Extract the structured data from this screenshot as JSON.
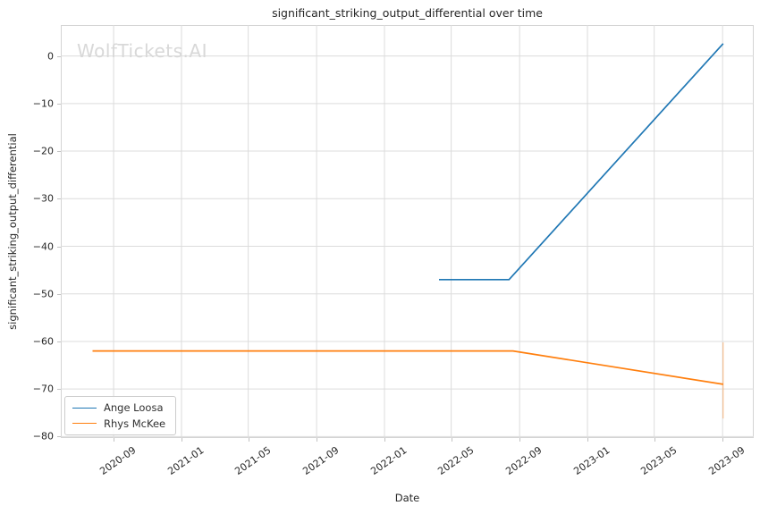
{
  "header": {
    "title": "significant_striking_output_differential over time",
    "watermark": "WolfTickets.AI"
  },
  "axes": {
    "xlabel": "Date",
    "ylabel": "significant_striking_output_differential"
  },
  "legend": {
    "items": [
      {
        "label": "Ange Loosa",
        "color": "#1f77b4"
      },
      {
        "label": "Rhys McKee",
        "color": "#ff7f0e"
      }
    ]
  },
  "colors": {
    "series_blue": "#1f77b4",
    "series_orange": "#ff7f0e",
    "grid": "#dcdcdc",
    "spine": "#d4d4d4",
    "text": "#262626",
    "watermark": "#d8d8d8"
  },
  "chart_data": {
    "type": "line",
    "title": "significant_striking_output_differential over time",
    "xlabel": "Date",
    "ylabel": "significant_striking_output_differential",
    "grid": true,
    "legend_position": "lower left",
    "x_domain": [
      "2020-05-29",
      "2023-10-27"
    ],
    "y_domain": [
      -80.3,
      6.5
    ],
    "x_ticks": [
      "2020-09",
      "2021-01",
      "2021-05",
      "2021-09",
      "2022-01",
      "2022-05",
      "2022-09",
      "2023-01",
      "2023-05",
      "2023-09"
    ],
    "y_ticks": [
      0,
      -10,
      -20,
      -30,
      -40,
      -50,
      -60,
      -70,
      -80
    ],
    "series": [
      {
        "name": "Ange Loosa",
        "color": "#1f77b4",
        "points": [
          [
            "2022-04-09",
            -47
          ],
          [
            "2022-08-13",
            -47
          ],
          [
            "2023-09-02",
            2.6
          ]
        ]
      },
      {
        "name": "Rhys McKee",
        "color": "#ff7f0e",
        "points": [
          [
            "2020-07-25",
            -62
          ],
          [
            "2022-08-20",
            -62
          ],
          [
            "2023-09-02",
            -69
          ]
        ],
        "end_vertical_artifact": {
          "x": "2023-09-02",
          "from": -60.2,
          "to": -76.2
        }
      }
    ]
  }
}
